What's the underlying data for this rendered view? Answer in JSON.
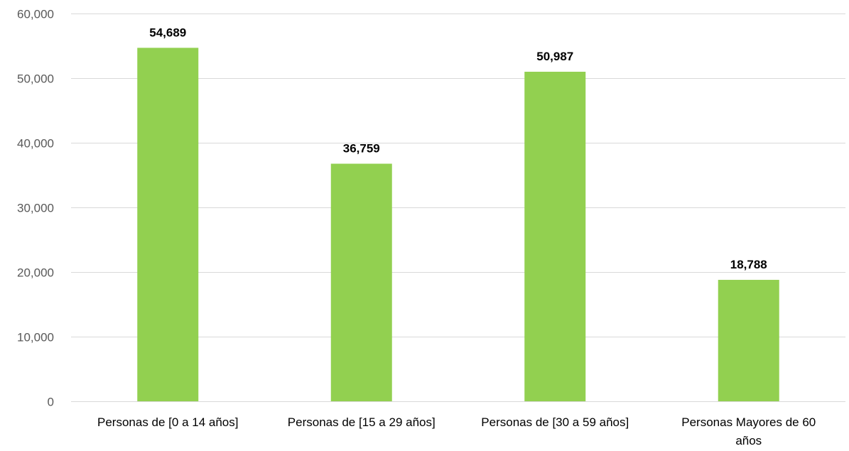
{
  "chart_data": {
    "type": "bar",
    "title": "",
    "xlabel": "",
    "ylabel": "",
    "categories": [
      [
        "Personas de [0 a 14 años]"
      ],
      [
        "Personas de [15 a 29 años]"
      ],
      [
        "Personas de [30 a 59 años]"
      ],
      [
        "Personas Mayores de 60",
        "años"
      ]
    ],
    "values": [
      54689,
      36759,
      50987,
      18788
    ],
    "data_labels": [
      "54,689",
      "36,759",
      "50,987",
      "18,788"
    ],
    "ylim": [
      0,
      60000
    ],
    "yticks": [
      0,
      10000,
      20000,
      30000,
      40000,
      50000,
      60000
    ],
    "ytick_labels": [
      "0",
      "10,000",
      "20,000",
      "30,000",
      "40,000",
      "50,000",
      "60,000"
    ],
    "grid": true,
    "legend": "none",
    "colors": {
      "bar": "#92d050",
      "grid": "#d9d9d9",
      "axis": "#d9d9d9"
    }
  }
}
